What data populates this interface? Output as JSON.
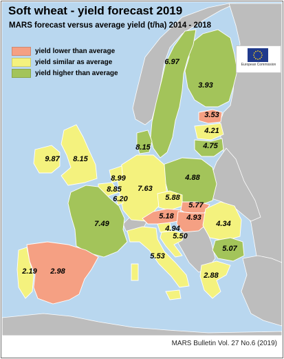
{
  "title": "Soft wheat - yield forecast 2019",
  "subtitle": "MARS forecast versus average yield (t/ha) 2014 - 2018",
  "colors": {
    "sea": "#b9d7ef",
    "lower": "#f5a083",
    "similar": "#f4f27e",
    "higher": "#a3c45a",
    "nodata": "#d9d9d9",
    "outside": "#bdbdbd",
    "border": "#ffffff"
  },
  "legend": [
    {
      "label": "yield lower than average",
      "color": "#f5a083"
    },
    {
      "label": "yield similar as average",
      "color": "#f4f27e"
    },
    {
      "label": "yield higher than average",
      "color": "#a3c45a"
    }
  ],
  "logo": {
    "text": "European Commission"
  },
  "countries": [
    {
      "id": "sweden",
      "value": "6.97",
      "category": "higher"
    },
    {
      "id": "finland",
      "value": "3.93",
      "category": "similar"
    },
    {
      "id": "estonia",
      "value": "3.53",
      "category": "lower"
    },
    {
      "id": "latvia",
      "value": "4.21",
      "category": "similar"
    },
    {
      "id": "lithuania",
      "value": "4.75",
      "category": "higher"
    },
    {
      "id": "denmark",
      "value": "8.15",
      "category": "higher"
    },
    {
      "id": "ireland",
      "value": "9.87",
      "category": "similar"
    },
    {
      "id": "united-kingdom",
      "value": "8.15",
      "category": "similar"
    },
    {
      "id": "netherlands",
      "value": "8.99",
      "category": "similar"
    },
    {
      "id": "belgium",
      "value": "8.85",
      "category": "similar"
    },
    {
      "id": "luxembourg",
      "value": "6.20",
      "category": "similar"
    },
    {
      "id": "germany",
      "value": "7.63",
      "category": "similar"
    },
    {
      "id": "poland",
      "value": "4.88",
      "category": "higher"
    },
    {
      "id": "czechia",
      "value": "5.88",
      "category": "similar"
    },
    {
      "id": "slovakia",
      "value": "5.77",
      "category": "lower"
    },
    {
      "id": "austria",
      "value": "5.18",
      "category": "lower"
    },
    {
      "id": "hungary",
      "value": "4.93",
      "category": "lower"
    },
    {
      "id": "slovenia",
      "value": "4.94",
      "category": "similar"
    },
    {
      "id": "croatia",
      "value": "5.50",
      "category": "similar"
    },
    {
      "id": "romania",
      "value": "4.34",
      "category": "similar"
    },
    {
      "id": "bulgaria",
      "value": "5.07",
      "category": "higher"
    },
    {
      "id": "france",
      "value": "7.49",
      "category": "higher"
    },
    {
      "id": "italy",
      "value": "5.53",
      "category": "similar"
    },
    {
      "id": "greece",
      "value": "2.88",
      "category": "similar"
    },
    {
      "id": "spain",
      "value": "2.98",
      "category": "lower"
    },
    {
      "id": "portugal",
      "value": "2.19",
      "category": "similar"
    }
  ],
  "footer": "MARS Bulletin Vol. 27 No.6 (2019)"
}
